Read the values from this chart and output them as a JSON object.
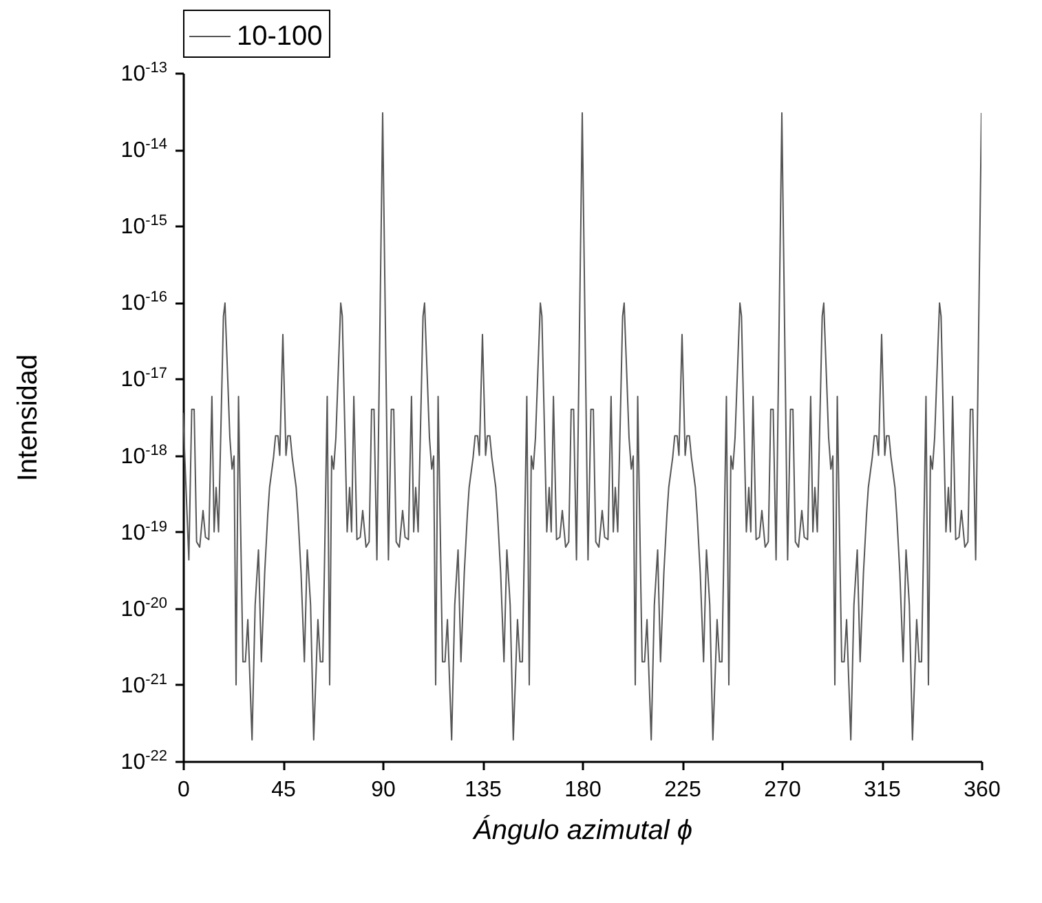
{
  "chart_data": {
    "type": "line",
    "xlabel": "Ángulo azimutal ϕ",
    "ylabel": "Intensidad",
    "log": "y",
    "legend": "top",
    "grid": false,
    "marker": "none",
    "line_style": "solid",
    "xlim": [
      0,
      360
    ],
    "xticks": [
      0,
      45,
      90,
      135,
      180,
      225,
      270,
      315,
      360
    ],
    "ylim": [
      1e-22,
      1e-13
    ],
    "yticks": [
      {
        "value": 1e-22,
        "label": "10$^{-22}$"
      },
      {
        "value": 1e-21,
        "label": "10$^{-21}$"
      },
      {
        "value": 1e-20,
        "label": "10$^{-20}$"
      },
      {
        "value": 1e-19,
        "label": "10$^{-19}$"
      },
      {
        "value": 1e-18,
        "label": "10$^{-18}$"
      },
      {
        "value": 1e-17,
        "label": "10$^{-17}$"
      },
      {
        "value": 1e-16,
        "label": "10$^{-16}$"
      },
      {
        "value": 1e-15,
        "label": "10$^{-15}$"
      },
      {
        "value": 1e-14,
        "label": "10$^{-14}$"
      },
      {
        "value": 1e-13,
        "label": "10$^{-13}$"
      }
    ],
    "x": [
      0,
      2.6,
      3.9,
      5.0,
      6.1,
      7.5,
      9.0,
      10.1,
      11.6,
      13.0,
      14.0,
      14.9,
      16.0,
      18.2,
      18.9,
      21.1,
      22.1,
      23.0,
      23.9,
      25.0,
      26.1,
      27.0,
      28.1,
      29.2,
      31.1,
      32.5,
      34.0,
      35.3,
      36.8,
      38.2,
      39.0,
      40.8,
      41.7,
      42.8,
      43.6,
      45,
      46.4,
      47.2,
      48.3,
      49.2,
      51.0,
      51.8,
      53.2,
      54.7,
      56.0,
      57.5,
      58.9,
      60.8,
      61.9,
      63.0,
      63.9,
      65.0,
      66.1,
      67.0,
      67.9,
      68.9,
      71.1,
      71.8,
      74.0,
      75.1,
      76.0,
      77.0,
      78.4,
      79.9,
      81.0,
      82.5,
      83.9,
      85.0,
      86.1,
      87.4,
      90,
      92.6,
      93.9,
      95.0,
      96.1,
      97.5,
      99.0,
      100.1,
      101.6,
      103.0,
      104.0,
      104.9,
      106.0,
      108.2,
      108.9,
      111.1,
      112.1,
      113.0,
      113.9,
      115.0,
      116.1,
      117.0,
      118.1,
      119.2,
      121.1,
      122.5,
      124.0,
      125.3,
      126.8,
      128.2,
      129.0,
      130.8,
      131.7,
      132.8,
      133.6,
      135,
      136.4,
      137.2,
      138.3,
      139.2,
      141.0,
      141.8,
      143.2,
      144.7,
      146.0,
      147.5,
      148.9,
      150.8,
      151.9,
      153.0,
      153.9,
      155.0,
      156.1,
      157.0,
      157.9,
      158.9,
      161.1,
      161.8,
      164.0,
      165.1,
      166.0,
      167.0,
      168.4,
      169.9,
      171.0,
      172.5,
      173.9,
      175.0,
      176.1,
      177.4,
      180,
      182.6,
      183.9,
      185.0,
      186.1,
      187.5,
      189.0,
      190.1,
      191.6,
      193.0,
      194.0,
      194.9,
      196.0,
      198.2,
      198.9,
      201.1,
      202.1,
      203.0,
      203.9,
      205.0,
      206.1,
      207.0,
      208.1,
      209.2,
      211.1,
      212.5,
      214.0,
      215.3,
      216.8,
      218.2,
      219.0,
      220.8,
      221.7,
      222.8,
      223.6,
      225,
      226.4,
      227.2,
      228.3,
      229.2,
      231.0,
      231.8,
      233.2,
      234.7,
      236.0,
      237.5,
      238.9,
      240.8,
      241.9,
      243.0,
      243.9,
      245.0,
      246.1,
      247.0,
      247.9,
      248.9,
      251.1,
      251.8,
      254.0,
      255.1,
      256.0,
      257.0,
      258.4,
      259.9,
      261.0,
      262.5,
      263.9,
      265.0,
      266.1,
      267.4,
      270,
      272.6,
      273.9,
      275.0,
      276.1,
      277.5,
      279.0,
      280.1,
      281.6,
      283.0,
      284.0,
      284.9,
      286.0,
      288.2,
      288.9,
      291.1,
      292.1,
      293.0,
      293.9,
      295.0,
      296.1,
      297.0,
      298.1,
      299.2,
      301.1,
      302.5,
      304.0,
      305.3,
      306.8,
      308.2,
      309.0,
      310.8,
      311.7,
      312.8,
      313.6,
      315,
      316.4,
      317.2,
      318.3,
      319.2,
      321.0,
      321.8,
      323.2,
      324.7,
      326.0,
      327.5,
      328.9,
      330.8,
      331.9,
      333.0,
      333.9,
      335.0,
      336.1,
      337.0,
      337.9,
      338.9,
      341.1,
      341.8,
      344.0,
      345.1,
      346.0,
      347.0,
      348.4,
      349.9,
      351.0,
      352.5,
      353.9,
      355.0,
      356.1,
      357.4,
      360
    ],
    "series": [
      {
        "name": "10-100",
        "color": "#555555",
        "values": [
          3.6e-18,
          4.3e-20,
          4e-18,
          4e-18,
          7.4e-20,
          6.3e-20,
          1.9e-19,
          8.5e-20,
          7.9e-20,
          5.9e-18,
          1e-19,
          3.8e-19,
          1e-19,
          6.6e-17,
          9.8e-17,
          1.7e-18,
          6.6e-19,
          9.8e-19,
          1e-21,
          5.9e-18,
          6.3e-20,
          2e-21,
          2e-21,
          7.1e-21,
          1.9e-22,
          1.1e-20,
          5.8e-20,
          2e-21,
          2.9e-20,
          1.7e-19,
          3.8e-19,
          9.5e-19,
          1.8e-18,
          1.8e-18,
          1e-18,
          3.8e-17,
          1e-18,
          1.8e-18,
          1.8e-18,
          9.5e-19,
          3.8e-19,
          1.7e-19,
          2.9e-20,
          2e-21,
          5.8e-20,
          1.1e-20,
          1.9e-22,
          7.1e-21,
          2e-21,
          2e-21,
          6.3e-20,
          5.9e-18,
          1e-21,
          9.8e-19,
          6.6e-19,
          1.7e-18,
          9.8e-17,
          6.6e-17,
          1e-19,
          3.8e-19,
          1e-19,
          5.9e-18,
          7.9e-20,
          8.5e-20,
          1.9e-19,
          6.3e-20,
          7.4e-20,
          4e-18,
          4e-18,
          4.3e-20,
          3e-14,
          4.3e-20,
          4e-18,
          4e-18,
          7.4e-20,
          6.3e-20,
          1.9e-19,
          8.5e-20,
          7.9e-20,
          5.9e-18,
          1e-19,
          3.8e-19,
          1e-19,
          6.6e-17,
          9.8e-17,
          1.7e-18,
          6.6e-19,
          9.8e-19,
          1e-21,
          5.9e-18,
          6.3e-20,
          2e-21,
          2e-21,
          7.1e-21,
          1.9e-22,
          1.1e-20,
          5.8e-20,
          2e-21,
          2.9e-20,
          1.7e-19,
          3.8e-19,
          9.5e-19,
          1.8e-18,
          1.8e-18,
          1e-18,
          3.8e-17,
          1e-18,
          1.8e-18,
          1.8e-18,
          9.5e-19,
          3.8e-19,
          1.7e-19,
          2.9e-20,
          2e-21,
          5.8e-20,
          1.1e-20,
          1.9e-22,
          7.1e-21,
          2e-21,
          2e-21,
          6.3e-20,
          5.9e-18,
          1e-21,
          9.8e-19,
          6.6e-19,
          1.7e-18,
          9.8e-17,
          6.6e-17,
          1e-19,
          3.8e-19,
          1e-19,
          5.9e-18,
          7.9e-20,
          8.5e-20,
          1.9e-19,
          6.3e-20,
          7.4e-20,
          4e-18,
          4e-18,
          4.3e-20,
          3e-14,
          4.3e-20,
          4e-18,
          4e-18,
          7.4e-20,
          6.3e-20,
          1.9e-19,
          8.5e-20,
          7.9e-20,
          5.9e-18,
          1e-19,
          3.8e-19,
          1e-19,
          6.6e-17,
          9.8e-17,
          1.7e-18,
          6.6e-19,
          9.8e-19,
          1e-21,
          5.9e-18,
          6.3e-20,
          2e-21,
          2e-21,
          7.1e-21,
          1.9e-22,
          1.1e-20,
          5.8e-20,
          2e-21,
          2.9e-20,
          1.7e-19,
          3.8e-19,
          9.5e-19,
          1.8e-18,
          1.8e-18,
          1e-18,
          3.8e-17,
          1e-18,
          1.8e-18,
          1.8e-18,
          9.5e-19,
          3.8e-19,
          1.7e-19,
          2.9e-20,
          2e-21,
          5.8e-20,
          1.1e-20,
          1.9e-22,
          7.1e-21,
          2e-21,
          2e-21,
          6.3e-20,
          5.9e-18,
          1e-21,
          9.8e-19,
          6.6e-19,
          1.7e-18,
          9.8e-17,
          6.6e-17,
          1e-19,
          3.8e-19,
          1e-19,
          5.9e-18,
          7.9e-20,
          8.5e-20,
          1.9e-19,
          6.3e-20,
          7.4e-20,
          4e-18,
          4e-18,
          4.3e-20,
          3e-14,
          4.3e-20,
          4e-18,
          4e-18,
          7.4e-20,
          6.3e-20,
          1.9e-19,
          8.5e-20,
          7.9e-20,
          5.9e-18,
          1e-19,
          3.8e-19,
          1e-19,
          6.6e-17,
          9.8e-17,
          1.7e-18,
          6.6e-19,
          9.8e-19,
          1e-21,
          5.9e-18,
          6.3e-20,
          2e-21,
          2e-21,
          7.1e-21,
          1.9e-22,
          1.1e-20,
          5.8e-20,
          2e-21,
          2.9e-20,
          1.7e-19,
          3.8e-19,
          9.5e-19,
          1.8e-18,
          1.8e-18,
          1e-18,
          3.8e-17,
          1e-18,
          1.8e-18,
          1.8e-18,
          9.5e-19,
          3.8e-19,
          1.7e-19,
          2.9e-20,
          2e-21,
          5.8e-20,
          1.1e-20,
          1.9e-22,
          7.1e-21,
          2e-21,
          2e-21,
          6.3e-20,
          5.9e-18,
          1e-21,
          9.8e-19,
          6.6e-19,
          1.7e-18,
          9.8e-17,
          6.6e-17,
          1e-19,
          3.8e-19,
          1e-19,
          5.9e-18,
          7.9e-20,
          8.5e-20,
          1.9e-19,
          6.3e-20,
          7.4e-20,
          4e-18,
          4e-18,
          4.3e-20,
          3e-14
        ]
      }
    ]
  }
}
